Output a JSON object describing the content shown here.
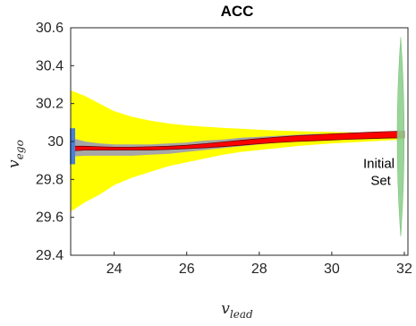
{
  "chart_data": {
    "type": "area",
    "title": "ACC",
    "xlabel": {
      "main": "v",
      "sub": "lead"
    },
    "ylabel": {
      "main": "v",
      "sub": "ego"
    },
    "xlim": [
      22.8,
      32.1
    ],
    "ylim": [
      29.4,
      30.6
    ],
    "xticks": [
      24,
      26,
      28,
      30,
      32
    ],
    "yticks": [
      29.4,
      29.6,
      29.8,
      30,
      30.2,
      30.4,
      30.6
    ],
    "xtick_labels": [
      "24",
      "26",
      "28",
      "30",
      "32"
    ],
    "ytick_labels": [
      "29.4",
      "29.6",
      "29.8",
      "30",
      "30.2",
      "30.4",
      "30.6"
    ],
    "grid": false,
    "annotation": {
      "lines": [
        "Initial",
        "Set"
      ],
      "x": 31.35,
      "y": 29.86
    },
    "colors": {
      "outer_band": "#ffff00",
      "inner_band": "#a6a6a6",
      "trajectory": "#ff0000",
      "trajectory_edge": "#6b0000",
      "initial_set": "#8fd08f",
      "start_set": "#4a7fd4"
    },
    "series": [
      {
        "x": [
          22.8,
          23.2,
          23.6,
          24.0,
          24.5,
          25.0,
          25.5,
          26.0,
          26.5,
          27.0,
          27.5,
          28.0,
          28.5,
          29.0,
          29.5,
          30.0,
          30.5,
          31.0,
          31.5,
          32.0
        ],
        "lower": [
          29.63,
          29.68,
          29.72,
          29.77,
          29.81,
          29.84,
          29.87,
          29.89,
          29.91,
          29.93,
          29.945,
          29.955,
          29.965,
          29.975,
          29.983,
          29.99,
          29.995,
          30.0,
          30.005,
          30.01
        ],
        "upper": [
          30.27,
          30.24,
          30.2,
          30.16,
          30.13,
          30.11,
          30.095,
          30.085,
          30.078,
          30.072,
          30.067,
          30.062,
          30.058,
          30.055,
          30.052,
          30.05,
          30.048,
          30.046,
          30.045,
          30.045
        ]
      },
      {
        "x": [
          22.8,
          23.2,
          23.6,
          24.0,
          24.5,
          25.0,
          25.5,
          26.0,
          26.5,
          27.0,
          27.5,
          28.0,
          28.5,
          29.0,
          29.5,
          30.0,
          30.5,
          31.0,
          31.5,
          32.0
        ],
        "lower": [
          29.92,
          29.925,
          29.925,
          29.925,
          29.925,
          29.93,
          29.935,
          29.945,
          29.955,
          29.965,
          29.975,
          29.985,
          29.995,
          30.005,
          30.01,
          30.015,
          30.02,
          30.025,
          30.03,
          30.03
        ],
        "upper": [
          30.02,
          30.0,
          29.99,
          29.985,
          29.985,
          29.985,
          29.99,
          29.995,
          30.005,
          30.01,
          30.02,
          30.025,
          30.03,
          30.035,
          30.04,
          30.04,
          30.045,
          30.045,
          30.05,
          30.05
        ]
      },
      {
        "x": [
          22.8,
          23.2,
          23.6,
          24.0,
          24.5,
          25.0,
          25.5,
          26.0,
          26.5,
          27.0,
          27.5,
          28.0,
          28.5,
          29.0,
          29.5,
          30.0,
          30.5,
          31.0,
          31.5,
          32.0
        ],
        "lower": [
          29.95,
          29.955,
          29.955,
          29.955,
          29.955,
          29.955,
          29.958,
          29.962,
          29.967,
          29.973,
          29.98,
          29.988,
          29.995,
          30.0,
          30.004,
          30.008,
          30.012,
          30.015,
          30.018,
          30.02
        ],
        "upper": [
          29.975,
          29.975,
          29.972,
          29.97,
          29.97,
          29.972,
          29.975,
          29.98,
          29.988,
          29.997,
          30.006,
          30.015,
          30.023,
          30.03,
          30.035,
          30.04,
          30.044,
          30.048,
          30.052,
          30.055
        ]
      }
    ],
    "initial_set": {
      "x_center": 31.9,
      "x_half_width": 0.12,
      "y": [
        29.5,
        30.55
      ],
      "label": "Initial Set"
    },
    "start_set": {
      "x": 22.85,
      "y": [
        29.88,
        30.07
      ]
    }
  }
}
